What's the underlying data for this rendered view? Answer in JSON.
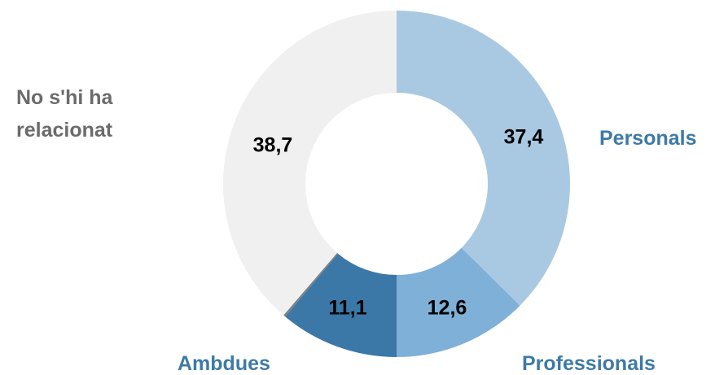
{
  "chart_data": {
    "type": "pie",
    "variant": "donut",
    "start_angle_deg": 0,
    "direction": "clockwise",
    "slices": [
      {
        "label": "Personals",
        "value": 37.4,
        "value_text": "37,4",
        "color": "#a9c9e2",
        "label_color": "#3e7aa6"
      },
      {
        "label": "Professionals",
        "value": 12.6,
        "value_text": "12,6",
        "color": "#7fb0d7",
        "label_color": "#3e7aa6"
      },
      {
        "label": "Ambdues",
        "value": 11.1,
        "value_text": "11,1",
        "color": "#3b78a8",
        "label_color": "#3e7aa6"
      },
      {
        "label": "",
        "value": 0.2,
        "value_text": "",
        "color": "#808080",
        "label_color": "#808080"
      },
      {
        "label": "No s'hi ha relacionat",
        "label_lines": [
          "No s'hi ha",
          "relacionat"
        ],
        "value": 38.7,
        "value_text": "38,7",
        "color": "#f0f0f0",
        "label_color": "#6b6b6b"
      }
    ]
  }
}
